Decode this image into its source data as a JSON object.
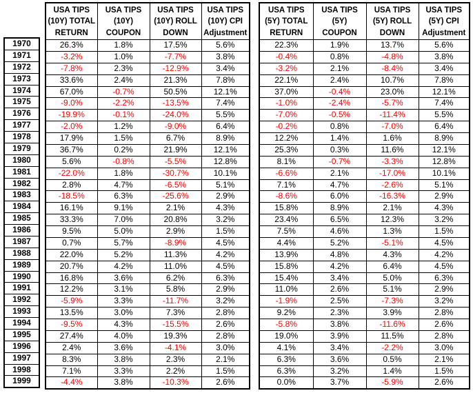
{
  "colors": {
    "background": "#FFFFFF",
    "text": "#000000",
    "negative_text": "#FF0000",
    "border": "#000000"
  },
  "table": {
    "headers_10y": [
      "USA TIPS\n(10Y) TOTAL\nRETURN",
      "USA TIPS\n(10Y)\nCOUPON",
      "USA TIPS\n(10Y) ROLL\nDOWN",
      "USA TIPS\n(10Y) CPI\nAdjustment"
    ],
    "headers_5y": [
      "USA TIPS\n(5Y) TOTAL\nRETURN",
      "USA TIPS\n(5Y)\nCOUPON",
      "USA TIPS\n(5Y) ROLL\nDOWN",
      "USA TIPS\n(5Y) CPI\nAdjustment"
    ],
    "rows": [
      {
        "year": "1970",
        "values_10y": [
          "26.3%",
          "1.8%",
          "17.5%",
          "5.6%"
        ],
        "values_5y": [
          "22.3%",
          "1.9%",
          "13.7%",
          "5.6%"
        ]
      },
      {
        "year": "1971",
        "values_10y": [
          "-3.2%",
          "1.0%",
          "-7.7%",
          "3.8%"
        ],
        "values_5y": [
          "-0.4%",
          "0.8%",
          "-4.8%",
          "3.8%"
        ]
      },
      {
        "year": "1972",
        "values_10y": [
          "-7.8%",
          "2.3%",
          "-12.9%",
          "3.4%"
        ],
        "values_5y": [
          "-3.2%",
          "2.1%",
          "-8.4%",
          "3.4%"
        ]
      },
      {
        "year": "1973",
        "values_10y": [
          "33.6%",
          "2.4%",
          "21.3%",
          "7.8%"
        ],
        "values_5y": [
          "22.1%",
          "2.4%",
          "10.7%",
          "7.8%"
        ]
      },
      {
        "year": "1974",
        "values_10y": [
          "67.0%",
          "-0.7%",
          "50.5%",
          "12.1%"
        ],
        "values_5y": [
          "37.0%",
          "-0.4%",
          "23.0%",
          "12.1%"
        ]
      },
      {
        "year": "1975",
        "values_10y": [
          "-9.0%",
          "-2.2%",
          "-13.5%",
          "7.4%"
        ],
        "values_5y": [
          "-1.0%",
          "-2.4%",
          "-5.7%",
          "7.4%"
        ]
      },
      {
        "year": "1976",
        "values_10y": [
          "-19.9%",
          "-0.1%",
          "-24.0%",
          "5.5%"
        ],
        "values_5y": [
          "-7.0%",
          "-0.5%",
          "-11.4%",
          "5.5%"
        ]
      },
      {
        "year": "1977",
        "values_10y": [
          "-2.0%",
          "1.2%",
          "-9.0%",
          "6.4%"
        ],
        "values_5y": [
          "-0.2%",
          "0.8%",
          "-7.0%",
          "6.4%"
        ]
      },
      {
        "year": "1978",
        "values_10y": [
          "17.9%",
          "1.5%",
          "6.7%",
          "8.9%"
        ],
        "values_5y": [
          "12.2%",
          "1.4%",
          "1.6%",
          "8.9%"
        ]
      },
      {
        "year": "1979",
        "values_10y": [
          "36.7%",
          "0.2%",
          "21.9%",
          "12.1%"
        ],
        "values_5y": [
          "25.3%",
          "0.3%",
          "11.6%",
          "12.1%"
        ]
      },
      {
        "year": "1980",
        "values_10y": [
          "5.6%",
          "-0.8%",
          "-5.5%",
          "12.8%"
        ],
        "values_5y": [
          "8.1%",
          "-0.7%",
          "-3.3%",
          "12.8%"
        ]
      },
      {
        "year": "1981",
        "values_10y": [
          "-22.0%",
          "1.8%",
          "-30.7%",
          "10.1%"
        ],
        "values_5y": [
          "-6.6%",
          "2.1%",
          "-17.0%",
          "10.1%"
        ]
      },
      {
        "year": "1982",
        "values_10y": [
          "2.8%",
          "4.7%",
          "-6.5%",
          "5.1%"
        ],
        "values_5y": [
          "7.1%",
          "4.7%",
          "-2.6%",
          "5.1%"
        ]
      },
      {
        "year": "1983",
        "values_10y": [
          "-18.5%",
          "6.3%",
          "-25.6%",
          "2.9%"
        ],
        "values_5y": [
          "-8.6%",
          "6.0%",
          "-16.3%",
          "2.9%"
        ]
      },
      {
        "year": "1984",
        "values_10y": [
          "16.1%",
          "9.1%",
          "2.1%",
          "4.3%"
        ],
        "values_5y": [
          "15.8%",
          "8.9%",
          "2.1%",
          "4.3%"
        ]
      },
      {
        "year": "1985",
        "values_10y": [
          "33.3%",
          "7.0%",
          "20.8%",
          "3.2%"
        ],
        "values_5y": [
          "23.4%",
          "6.5%",
          "12.3%",
          "3.2%"
        ]
      },
      {
        "year": "1986",
        "values_10y": [
          "9.5%",
          "5.0%",
          "2.9%",
          "1.5%"
        ],
        "values_5y": [
          "7.5%",
          "4.6%",
          "1.3%",
          "1.5%"
        ]
      },
      {
        "year": "1987",
        "values_10y": [
          "0.7%",
          "5.7%",
          "-8.9%",
          "4.5%"
        ],
        "values_5y": [
          "4.4%",
          "5.2%",
          "-5.1%",
          "4.5%"
        ]
      },
      {
        "year": "1988",
        "values_10y": [
          "22.0%",
          "5.2%",
          "11.3%",
          "4.2%"
        ],
        "values_5y": [
          "13.9%",
          "4.8%",
          "4.3%",
          "4.2%"
        ]
      },
      {
        "year": "1989",
        "values_10y": [
          "20.7%",
          "4.2%",
          "11.0%",
          "4.5%"
        ],
        "values_5y": [
          "15.8%",
          "4.2%",
          "6.4%",
          "4.5%"
        ]
      },
      {
        "year": "1990",
        "values_10y": [
          "16.8%",
          "3.6%",
          "6.2%",
          "6.3%"
        ],
        "values_5y": [
          "15.4%",
          "3.4%",
          "5.0%",
          "6.3%"
        ]
      },
      {
        "year": "1991",
        "values_10y": [
          "12.2%",
          "3.1%",
          "5.8%",
          "2.9%"
        ],
        "values_5y": [
          "11.0%",
          "2.6%",
          "5.1%",
          "2.9%"
        ]
      },
      {
        "year": "1992",
        "values_10y": [
          "-5.9%",
          "3.3%",
          "-11.7%",
          "3.2%"
        ],
        "values_5y": [
          "-1.9%",
          "2.5%",
          "-7.3%",
          "3.2%"
        ]
      },
      {
        "year": "1993",
        "values_10y": [
          "13.5%",
          "3.0%",
          "7.3%",
          "2.8%"
        ],
        "values_5y": [
          "9.2%",
          "2.3%",
          "3.9%",
          "2.8%"
        ]
      },
      {
        "year": "1994",
        "values_10y": [
          "-9.5%",
          "4.3%",
          "-15.5%",
          "2.6%"
        ],
        "values_5y": [
          "-5.8%",
          "3.8%",
          "-11.6%",
          "2.6%"
        ]
      },
      {
        "year": "1995",
        "values_10y": [
          "27.4%",
          "4.0%",
          "19.3%",
          "2.8%"
        ],
        "values_5y": [
          "19.0%",
          "3.9%",
          "11.5%",
          "2.8%"
        ]
      },
      {
        "year": "1996",
        "values_10y": [
          "2.4%",
          "3.6%",
          "-4.1%",
          "3.0%"
        ],
        "values_5y": [
          "4.1%",
          "3.4%",
          "-2.2%",
          "3.0%"
        ]
      },
      {
        "year": "1997",
        "values_10y": [
          "8.3%",
          "3.8%",
          "2.3%",
          "2.1%"
        ],
        "values_5y": [
          "6.3%",
          "3.6%",
          "0.5%",
          "2.1%"
        ]
      },
      {
        "year": "1998",
        "values_10y": [
          "7.1%",
          "3.3%",
          "2.2%",
          "1.5%"
        ],
        "values_5y": [
          "6.3%",
          "3.2%",
          "1.4%",
          "1.5%"
        ]
      },
      {
        "year": "1999",
        "values_10y": [
          "-4.4%",
          "3.8%",
          "-10.3%",
          "2.6%"
        ],
        "values_5y": [
          "0.0%",
          "3.7%",
          "-5.9%",
          "2.6%"
        ]
      }
    ]
  }
}
